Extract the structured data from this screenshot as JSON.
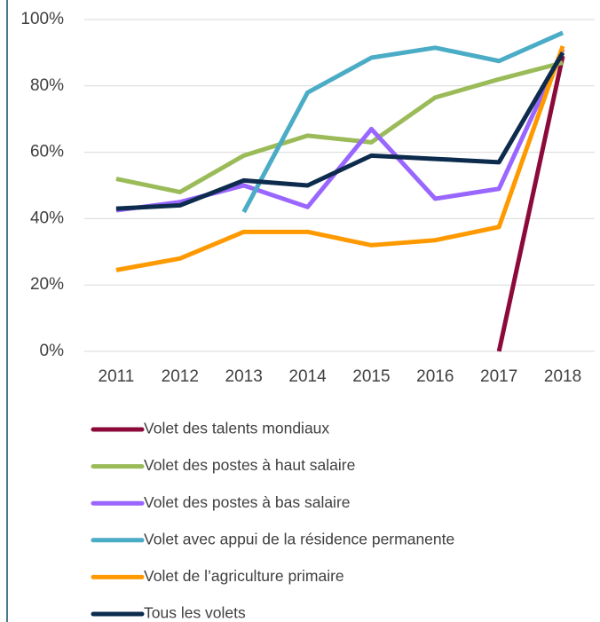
{
  "chart_data": {
    "type": "line",
    "categories": [
      "2011",
      "2012",
      "2013",
      "2014",
      "2015",
      "2016",
      "2017",
      "2018"
    ],
    "series": [
      {
        "name": "Volet des talents mondiaux",
        "color": "#8b0a3a",
        "values": [
          null,
          null,
          null,
          null,
          null,
          null,
          0,
          89
        ]
      },
      {
        "name": "Volet des postes à haut salaire",
        "color": "#9bbb59",
        "values": [
          52,
          48,
          59,
          65,
          63,
          76.5,
          82,
          87
        ]
      },
      {
        "name": "Volet des postes à bas salaire",
        "color": "#9966ff",
        "values": [
          42.5,
          45,
          50,
          43.5,
          67,
          46,
          49,
          91
        ]
      },
      {
        "name": "Volet avec appui de la résidence permanente",
        "color": "#4bacc6",
        "values": [
          null,
          null,
          42,
          78,
          88.5,
          91.5,
          87.5,
          96
        ]
      },
      {
        "name": "Volet de l’agriculture primaire",
        "color": "#ff9900",
        "values": [
          24.5,
          28,
          36,
          36,
          32,
          33.5,
          37.5,
          92
        ]
      },
      {
        "name": "Tous les volets",
        "color": "#0d2b4c",
        "values": [
          43,
          44,
          51.5,
          50,
          59,
          58,
          57,
          90
        ]
      }
    ],
    "ylim": [
      0,
      100
    ],
    "yticks": [
      {
        "value": 0,
        "label": "0%"
      },
      {
        "value": 20,
        "label": "20%"
      },
      {
        "value": 40,
        "label": "40%"
      },
      {
        "value": 60,
        "label": "60%"
      },
      {
        "value": 80,
        "label": "80%"
      },
      {
        "value": 100,
        "label": "100%"
      }
    ],
    "grid": true,
    "legend": "bottom"
  }
}
